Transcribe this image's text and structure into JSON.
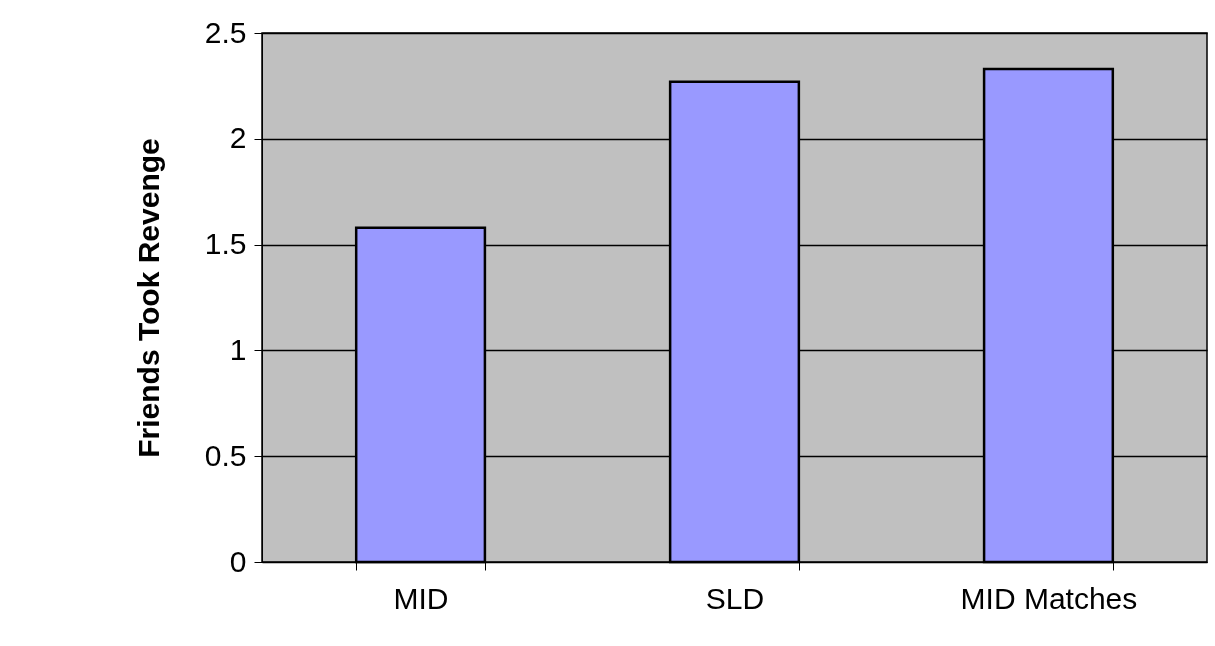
{
  "chart_data": {
    "type": "bar",
    "ylabel": "Friends Took Revenge",
    "categories": [
      "MID",
      "SLD",
      "MID Matches"
    ],
    "values": [
      1.58,
      2.27,
      2.33
    ],
    "color": "#9999ff",
    "ylim": [
      0,
      2.5
    ],
    "yticks": [
      0,
      0.5,
      1,
      1.5,
      2,
      2.5
    ],
    "grid": "y"
  }
}
